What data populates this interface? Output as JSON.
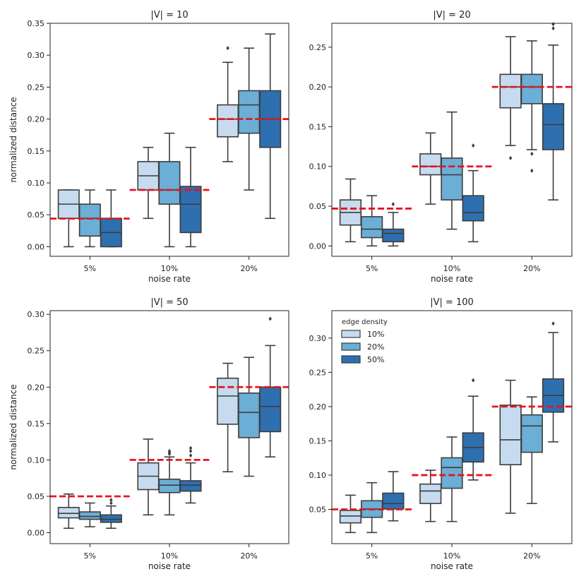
{
  "chart_data": [
    {
      "type": "box",
      "title": "|V| = 10",
      "xlabel": "noise rate",
      "ylabel": "normalized distance",
      "categories": [
        "5%",
        "10%",
        "20%"
      ],
      "ylim": [
        -0.015,
        0.35
      ],
      "yticks": [
        0.0,
        0.05,
        0.1,
        0.15,
        0.2,
        0.25,
        0.3,
        0.35
      ],
      "tick_format": 2,
      "reference_lines": [
        0.044,
        0.089,
        0.2
      ],
      "series": [
        {
          "name": "10%",
          "color": "#c6dbef",
          "boxes": [
            {
              "q1": 0.0444,
              "median": 0.0667,
              "q3": 0.0889,
              "whislo": 0.0,
              "whishi": 0.0889,
              "fliers": []
            },
            {
              "q1": 0.0889,
              "median": 0.1111,
              "q3": 0.1333,
              "whislo": 0.0444,
              "whishi": 0.1556,
              "fliers": []
            },
            {
              "q1": 0.1722,
              "median": 0.2,
              "q3": 0.2222,
              "whislo": 0.1333,
              "whishi": 0.2889,
              "fliers": [
                0.3111
              ]
            }
          ]
        },
        {
          "name": "20%",
          "color": "#6baed6",
          "boxes": [
            {
              "q1": 0.0167,
              "median": 0.0444,
              "q3": 0.0667,
              "whislo": 0.0,
              "whishi": 0.0889,
              "fliers": []
            },
            {
              "q1": 0.0667,
              "median": 0.0889,
              "q3": 0.1333,
              "whislo": 0.0,
              "whishi": 0.1778,
              "fliers": []
            },
            {
              "q1": 0.1778,
              "median": 0.2222,
              "q3": 0.2444,
              "whislo": 0.0889,
              "whishi": 0.3111,
              "fliers": []
            }
          ]
        },
        {
          "name": "50%",
          "color": "#2e6fb0",
          "boxes": [
            {
              "q1": 0.0,
              "median": 0.0222,
              "q3": 0.0444,
              "whislo": 0.0,
              "whishi": 0.0889,
              "fliers": []
            },
            {
              "q1": 0.0222,
              "median": 0.0667,
              "q3": 0.0944,
              "whislo": 0.0,
              "whishi": 0.1556,
              "fliers": []
            },
            {
              "q1": 0.1556,
              "median": 0.2,
              "q3": 0.2444,
              "whislo": 0.0444,
              "whishi": 0.3333,
              "fliers": []
            }
          ]
        }
      ]
    },
    {
      "type": "box",
      "title": "|V| = 20",
      "xlabel": "noise rate",
      "ylabel": "",
      "categories": [
        "5%",
        "10%",
        "20%"
      ],
      "ylim": [
        -0.013,
        0.28
      ],
      "yticks": [
        0.0,
        0.05,
        0.1,
        0.15,
        0.2,
        0.25
      ],
      "tick_format": 2,
      "reference_lines": [
        0.047,
        0.1,
        0.2
      ],
      "series": [
        {
          "name": "10%",
          "color": "#c6dbef",
          "boxes": [
            {
              "q1": 0.0263,
              "median": 0.0421,
              "q3": 0.0579,
              "whislo": 0.0053,
              "whishi": 0.0842,
              "fliers": []
            },
            {
              "q1": 0.0895,
              "median": 0.1,
              "q3": 0.1158,
              "whislo": 0.0526,
              "whishi": 0.1421,
              "fliers": []
            },
            {
              "q1": 0.1737,
              "median": 0.2,
              "q3": 0.2158,
              "whislo": 0.1263,
              "whishi": 0.2632,
              "fliers": [
                0.1105
              ]
            }
          ]
        },
        {
          "name": "20%",
          "color": "#6baed6",
          "boxes": [
            {
              "q1": 0.0105,
              "median": 0.0211,
              "q3": 0.0368,
              "whislo": 0.0,
              "whishi": 0.0632,
              "fliers": []
            },
            {
              "q1": 0.0579,
              "median": 0.0895,
              "q3": 0.1105,
              "whislo": 0.0211,
              "whishi": 0.1684,
              "fliers": []
            },
            {
              "q1": 0.1789,
              "median": 0.2,
              "q3": 0.2158,
              "whislo": 0.1211,
              "whishi": 0.2579,
              "fliers": [
                0.1158,
                0.0947
              ]
            }
          ]
        },
        {
          "name": "50%",
          "color": "#2e6fb0",
          "boxes": [
            {
              "q1": 0.0053,
              "median": 0.0158,
              "q3": 0.0211,
              "whislo": 0.0,
              "whishi": 0.0421,
              "fliers": [
                0.0526
              ]
            },
            {
              "q1": 0.0316,
              "median": 0.0421,
              "q3": 0.0632,
              "whislo": 0.0053,
              "whishi": 0.0947,
              "fliers": [
                0.1263
              ]
            },
            {
              "q1": 0.1211,
              "median": 0.1526,
              "q3": 0.1789,
              "whislo": 0.0579,
              "whishi": 0.2526,
              "fliers": [
                0.2737,
                0.2789
              ]
            }
          ]
        }
      ]
    },
    {
      "type": "box",
      "title": "|V| = 50",
      "xlabel": "noise rate",
      "ylabel": "normalized distance",
      "categories": [
        "5%",
        "10%",
        "20%"
      ],
      "ylim": [
        -0.015,
        0.305
      ],
      "yticks": [
        0.0,
        0.05,
        0.1,
        0.15,
        0.2,
        0.25,
        0.3
      ],
      "tick_format": 2,
      "reference_lines": [
        0.05,
        0.1,
        0.2
      ],
      "series": [
        {
          "name": "10%",
          "color": "#c6dbef",
          "boxes": [
            {
              "q1": 0.0204,
              "median": 0.0265,
              "q3": 0.0347,
              "whislo": 0.0061,
              "whishi": 0.0531,
              "fliers": []
            },
            {
              "q1": 0.0592,
              "median": 0.0776,
              "q3": 0.0959,
              "whislo": 0.0245,
              "whishi": 0.1286,
              "fliers": []
            },
            {
              "q1": 0.149,
              "median": 0.1878,
              "q3": 0.2122,
              "whislo": 0.0837,
              "whishi": 0.2327,
              "fliers": []
            }
          ]
        },
        {
          "name": "20%",
          "color": "#6baed6",
          "boxes": [
            {
              "q1": 0.0184,
              "median": 0.0224,
              "q3": 0.0286,
              "whislo": 0.0082,
              "whishi": 0.0408,
              "fliers": []
            },
            {
              "q1": 0.0551,
              "median": 0.0653,
              "q3": 0.0735,
              "whislo": 0.0245,
              "whishi": 0.1041,
              "fliers": [
                0.1122,
                0.1102,
                0.1082
              ]
            },
            {
              "q1": 0.1306,
              "median": 0.1653,
              "q3": 0.1918,
              "whislo": 0.0776,
              "whishi": 0.2408,
              "fliers": []
            }
          ]
        },
        {
          "name": "50%",
          "color": "#2e6fb0",
          "boxes": [
            {
              "q1": 0.0143,
              "median": 0.0184,
              "q3": 0.0245,
              "whislo": 0.0061,
              "whishi": 0.0367,
              "fliers": [
                0.0408,
                0.0449
              ]
            },
            {
              "q1": 0.0571,
              "median": 0.0653,
              "q3": 0.0714,
              "whislo": 0.0408,
              "whishi": 0.0959,
              "fliers": [
                0.1061,
                0.1122,
                0.1163
              ]
            },
            {
              "q1": 0.1388,
              "median": 0.1735,
              "q3": 0.2,
              "whislo": 0.1041,
              "whishi": 0.2571,
              "fliers": [
                0.2939
              ]
            }
          ]
        }
      ]
    },
    {
      "type": "box",
      "title": "|V| = 100",
      "xlabel": "noise rate",
      "ylabel": "",
      "categories": [
        "5%",
        "10%",
        "20%"
      ],
      "ylim": [
        0.0,
        0.34
      ],
      "yticks": [
        0.05,
        0.1,
        0.15,
        0.2,
        0.25,
        0.3
      ],
      "tick_format": 2,
      "reference_lines": [
        0.05,
        0.1,
        0.2
      ],
      "legend": {
        "title": "edge density",
        "position": "top-left",
        "entries": [
          "10%",
          "20%",
          "50%"
        ]
      },
      "series": [
        {
          "name": "10%",
          "color": "#c6dbef",
          "boxes": [
            {
              "q1": 0.0303,
              "median": 0.0404,
              "q3": 0.0485,
              "whislo": 0.0162,
              "whishi": 0.0707,
              "fliers": []
            },
            {
              "q1": 0.0586,
              "median": 0.0768,
              "q3": 0.0869,
              "whislo": 0.0323,
              "whishi": 0.1071,
              "fliers": []
            },
            {
              "q1": 0.1152,
              "median": 0.1515,
              "q3": 0.202,
              "whislo": 0.0444,
              "whishi": 0.2384,
              "fliers": []
            }
          ]
        },
        {
          "name": "20%",
          "color": "#6baed6",
          "boxes": [
            {
              "q1": 0.0384,
              "median": 0.0505,
              "q3": 0.0626,
              "whislo": 0.0162,
              "whishi": 0.0889,
              "fliers": []
            },
            {
              "q1": 0.0808,
              "median": 0.1111,
              "q3": 0.1253,
              "whislo": 0.0323,
              "whishi": 0.1556,
              "fliers": []
            },
            {
              "q1": 0.1333,
              "median": 0.1717,
              "q3": 0.1879,
              "whislo": 0.0586,
              "whishi": 0.2141,
              "fliers": []
            }
          ]
        },
        {
          "name": "50%",
          "color": "#2e6fb0",
          "boxes": [
            {
              "q1": 0.0505,
              "median": 0.0586,
              "q3": 0.0737,
              "whislo": 0.0333,
              "whishi": 0.1051,
              "fliers": []
            },
            {
              "q1": 0.1192,
              "median": 0.1404,
              "q3": 0.1616,
              "whislo": 0.0929,
              "whishi": 0.2152,
              "fliers": [
                0.2384
              ]
            },
            {
              "q1": 0.1919,
              "median": 0.2162,
              "q3": 0.2404,
              "whislo": 0.1485,
              "whishi": 0.3081,
              "fliers": [
                0.3212
              ]
            }
          ]
        }
      ]
    }
  ]
}
